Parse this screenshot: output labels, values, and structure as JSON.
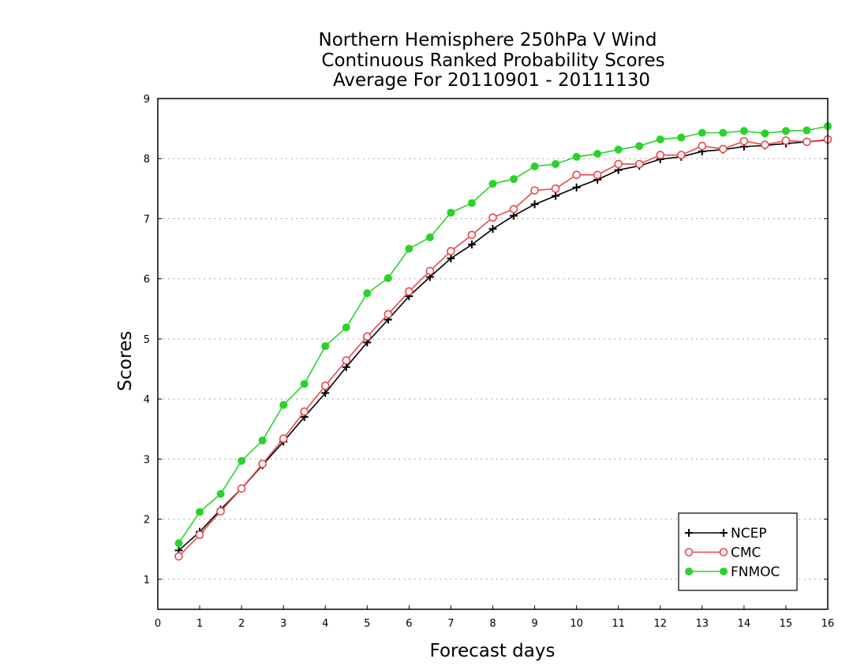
{
  "chart_data": {
    "type": "line",
    "title": [
      "Northern Hemisphere 250hPa V Wind",
      "Continuous Ranked Probability Scores",
      "Average For 20110901 - 20111130"
    ],
    "xlabel": "Forecast days",
    "ylabel": "Scores",
    "xlim": [
      0,
      16
    ],
    "ylim": [
      0.5,
      9
    ],
    "xticks": [
      "0",
      "1",
      "2",
      "3",
      "4",
      "5",
      "6",
      "7",
      "8",
      "9",
      "10",
      "11",
      "12",
      "13",
      "14",
      "15",
      "16"
    ],
    "yticks": [
      "1",
      "2",
      "3",
      "4",
      "5",
      "6",
      "7",
      "8",
      "9"
    ],
    "grid": "horizontal dotted",
    "legend_position": "bottom-right",
    "x": [
      0.5,
      1,
      1.5,
      2,
      2.5,
      3,
      3.5,
      4,
      4.5,
      5,
      5.5,
      6,
      6.5,
      7,
      7.5,
      8,
      8.5,
      9,
      9.5,
      10,
      10.5,
      11,
      11.5,
      12,
      12.5,
      13,
      13.5,
      14,
      14.5,
      15,
      15.5,
      16
    ],
    "series": [
      {
        "name": "NCEP",
        "color": "#000000",
        "marker": "plus",
        "values": [
          1.48,
          1.79,
          2.16,
          2.51,
          2.9,
          3.29,
          3.7,
          4.1,
          4.53,
          4.94,
          5.32,
          5.71,
          6.03,
          6.34,
          6.57,
          6.83,
          7.05,
          7.24,
          7.38,
          7.52,
          7.65,
          7.81,
          7.88,
          7.99,
          8.03,
          8.12,
          8.15,
          8.2,
          8.22,
          8.25,
          8.28,
          8.31
        ]
      },
      {
        "name": "CMC",
        "color": "#e8474c",
        "marker": "open-circle",
        "values": [
          1.38,
          1.74,
          2.13,
          2.51,
          2.92,
          3.34,
          3.79,
          4.22,
          4.64,
          5.04,
          5.41,
          5.79,
          6.13,
          6.46,
          6.73,
          7.02,
          7.16,
          7.47,
          7.5,
          7.73,
          7.73,
          7.91,
          7.91,
          8.06,
          8.06,
          8.21,
          8.16,
          8.29,
          8.23,
          8.3,
          8.28,
          8.32
        ]
      },
      {
        "name": "FNMOC",
        "color": "#2ad22a",
        "marker": "filled-circle",
        "values": [
          1.6,
          2.12,
          2.42,
          2.97,
          3.31,
          3.9,
          4.25,
          4.88,
          5.19,
          5.76,
          6.01,
          6.5,
          6.69,
          7.1,
          7.26,
          7.58,
          7.66,
          7.87,
          7.91,
          8.03,
          8.08,
          8.15,
          8.21,
          8.32,
          8.35,
          8.43,
          8.43,
          8.46,
          8.42,
          8.46,
          8.47,
          8.54
        ]
      }
    ]
  }
}
